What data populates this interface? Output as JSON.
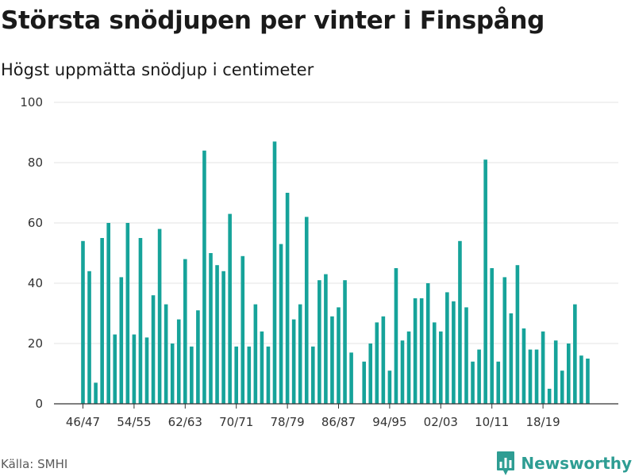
{
  "title": "Största snödjupen per vinter i Finspång",
  "subtitle": "Högst uppmätta snödjup i centimeter",
  "source": "Källa: SMHI",
  "brand": {
    "name": "Newsworthy",
    "icon": "bar-chart-bubble-icon",
    "color": "#2e9d93"
  },
  "colors": {
    "bar": "#16a39a",
    "grid": "#e3e3e3",
    "axis": "#333333",
    "tick_label": "#333333"
  },
  "chart_data": {
    "type": "bar",
    "title": "Största snödjupen per vinter i Finspång",
    "subtitle": "Högst uppmätta snödjup i centimeter",
    "xlabel": "",
    "ylabel": "",
    "ylim": [
      0,
      100
    ],
    "yticks": [
      0,
      20,
      40,
      60,
      80,
      100
    ],
    "grid": true,
    "legend": "none",
    "x_tick_labels": [
      {
        "index": 0,
        "label": "46/47"
      },
      {
        "index": 8,
        "label": "54/55"
      },
      {
        "index": 16,
        "label": "62/63"
      },
      {
        "index": 24,
        "label": "70/71"
      },
      {
        "index": 32,
        "label": "78/79"
      },
      {
        "index": 40,
        "label": "86/87"
      },
      {
        "index": 48,
        "label": "94/95"
      },
      {
        "index": 56,
        "label": "02/03"
      },
      {
        "index": 64,
        "label": "10/11"
      },
      {
        "index": 72,
        "label": "18/19"
      }
    ],
    "categories": [
      "46/47",
      "47/48",
      "48/49",
      "49/50",
      "50/51",
      "51/52",
      "52/53",
      "53/54",
      "54/55",
      "55/56",
      "56/57",
      "57/58",
      "58/59",
      "59/60",
      "60/61",
      "61/62",
      "62/63",
      "63/64",
      "64/65",
      "65/66",
      "66/67",
      "67/68",
      "68/69",
      "69/70",
      "70/71",
      "71/72",
      "72/73",
      "73/74",
      "74/75",
      "75/76",
      "76/77",
      "77/78",
      "78/79",
      "79/80",
      "80/81",
      "81/82",
      "82/83",
      "83/84",
      "84/85",
      "85/86",
      "86/87",
      "87/88",
      "88/89",
      "89/90",
      "90/91",
      "91/92",
      "92/93",
      "93/94",
      "94/95",
      "95/96",
      "96/97",
      "97/98",
      "98/99",
      "99/00",
      "00/01",
      "01/02",
      "02/03",
      "03/04",
      "04/05",
      "05/06",
      "06/07",
      "07/08",
      "08/09",
      "09/10",
      "10/11",
      "11/12",
      "12/13",
      "13/14",
      "14/15",
      "15/16",
      "16/17",
      "17/18",
      "18/19",
      "19/20",
      "20/21",
      "21/22",
      "22/23",
      "23/24",
      "24/25",
      "25/26"
    ],
    "values": [
      54,
      44,
      7,
      55,
      60,
      23,
      42,
      60,
      23,
      55,
      22,
      36,
      58,
      33,
      20,
      28,
      48,
      19,
      31,
      84,
      50,
      46,
      44,
      63,
      19,
      49,
      19,
      33,
      24,
      19,
      87,
      53,
      70,
      28,
      33,
      62,
      19,
      41,
      43,
      29,
      32,
      41,
      17,
      null,
      14,
      20,
      27,
      29,
      11,
      45,
      21,
      24,
      35,
      35,
      40,
      27,
      24,
      37,
      34,
      54,
      32,
      14,
      18,
      81,
      45,
      14,
      42,
      30,
      46,
      25,
      18,
      18,
      24,
      5,
      21,
      11,
      20,
      33,
      16,
      15
    ]
  }
}
